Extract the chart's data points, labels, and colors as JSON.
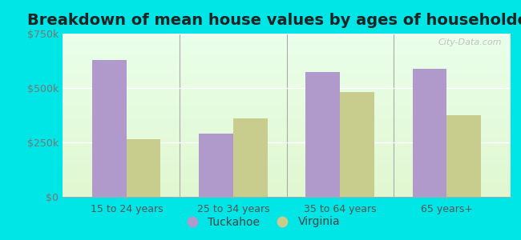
{
  "title": "Breakdown of mean house values by ages of householders",
  "categories": [
    "15 to 24 years",
    "25 to 34 years",
    "35 to 64 years",
    "65 years+"
  ],
  "tuckahoe_values": [
    630000,
    290000,
    575000,
    590000
  ],
  "virginia_values": [
    265000,
    360000,
    480000,
    375000
  ],
  "tuckahoe_color": "#b09acc",
  "virginia_color": "#c8cc8c",
  "background_color": "#00e5e5",
  "ylim": [
    0,
    750000
  ],
  "yticks": [
    0,
    250000,
    500000,
    750000
  ],
  "ytick_labels": [
    "$0",
    "$250k",
    "$500k",
    "$750k"
  ],
  "title_fontsize": 14,
  "legend_labels": [
    "Tuckahoe",
    "Virginia"
  ],
  "watermark": "City-Data.com",
  "bar_width": 0.32,
  "tick_color": "#777777",
  "label_color": "#555555"
}
